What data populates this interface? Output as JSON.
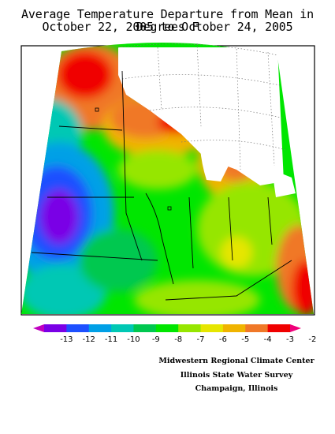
{
  "title": {
    "line1": "Average Temperature Departure from Mean in Degrees F",
    "line2": "October 22, 2005 to October 24, 2005"
  },
  "legend": {
    "labels": [
      "-13",
      "-12",
      "-11",
      "-10",
      "-9",
      "-8",
      "-7",
      "-6",
      "-5",
      "-4",
      "-3",
      "-2"
    ],
    "colors": [
      "#c000c0",
      "#7a00e6",
      "#1e50ff",
      "#00a0e6",
      "#00c8b4",
      "#00c850",
      "#00e600",
      "#96e600",
      "#e6e600",
      "#f0b400",
      "#f07828",
      "#f00000",
      "#f0007a"
    ]
  },
  "credits": {
    "line1": "Midwestern Regional Climate Center",
    "line2": "Illinois State Water Survey",
    "line3": "Champaign, Illinois"
  }
}
